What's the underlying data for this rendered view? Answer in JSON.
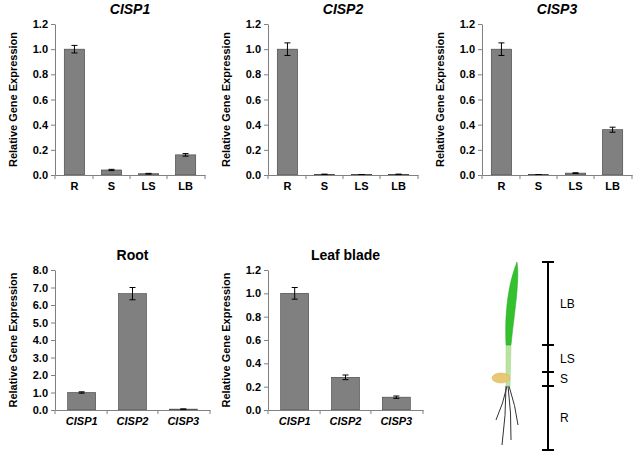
{
  "chart_data": [
    {
      "type": "bar",
      "title": "CISP1",
      "categories": [
        "R",
        "S",
        "LS",
        "LB"
      ],
      "values": [
        1.0,
        0.04,
        0.01,
        0.16
      ],
      "errors": [
        0.03,
        0.005,
        0.003,
        0.01
      ],
      "color": "#808080",
      "ylabel": "Relative Gene Expression",
      "ylim": [
        0,
        1.2
      ],
      "yticks": [
        {
          "value": 0,
          "label": "0.0"
        },
        {
          "value": 0.2,
          "label": "0.2"
        },
        {
          "value": 0.4,
          "label": "0.4"
        },
        {
          "value": 0.6,
          "label": "0.6"
        },
        {
          "value": 0.8,
          "label": "0.8"
        },
        {
          "value": 1.0,
          "label": "1.0"
        },
        {
          "value": 1.2,
          "label": "1.2"
        }
      ],
      "grid": false
    },
    {
      "type": "bar",
      "title": "CISP2",
      "categories": [
        "R",
        "S",
        "LS",
        "LB"
      ],
      "values": [
        1.0,
        0.005,
        0.003,
        0.005
      ],
      "errors": [
        0.05,
        0.002,
        0.001,
        0.002
      ],
      "color": "#808080",
      "ylabel": "Relative Gene Expression",
      "ylim": [
        0,
        1.2
      ],
      "yticks": [
        {
          "value": 0,
          "label": "0.0"
        },
        {
          "value": 0.2,
          "label": "0.2"
        },
        {
          "value": 0.4,
          "label": "0.4"
        },
        {
          "value": 0.6,
          "label": "0.6"
        },
        {
          "value": 0.8,
          "label": "0.8"
        },
        {
          "value": 1.0,
          "label": "1.0"
        },
        {
          "value": 1.2,
          "label": "1.2"
        }
      ],
      "grid": false
    },
    {
      "type": "bar",
      "title": "CISP3",
      "categories": [
        "R",
        "S",
        "LS",
        "LB"
      ],
      "values": [
        1.0,
        0.003,
        0.015,
        0.36
      ],
      "errors": [
        0.05,
        0.001,
        0.003,
        0.02
      ],
      "color": "#808080",
      "ylabel": "Relative Gene Expression",
      "ylim": [
        0,
        1.2
      ],
      "yticks": [
        {
          "value": 0,
          "label": "0.0"
        },
        {
          "value": 0.2,
          "label": "0.2"
        },
        {
          "value": 0.4,
          "label": "0.4"
        },
        {
          "value": 0.6,
          "label": "0.6"
        },
        {
          "value": 0.8,
          "label": "0.8"
        },
        {
          "value": 1.0,
          "label": "1.0"
        },
        {
          "value": 1.2,
          "label": "1.2"
        }
      ],
      "grid": false
    },
    {
      "type": "bar",
      "title": "Root",
      "categories": [
        "CISP1",
        "CISP2",
        "CISP3"
      ],
      "values": [
        1.0,
        6.65,
        0.05
      ],
      "errors": [
        0.04,
        0.35,
        0.01
      ],
      "color": "#808080",
      "ylabel": "Relative Gene Expression",
      "ylim": [
        0,
        8
      ],
      "yticks": [
        {
          "value": 0,
          "label": "0.0"
        },
        {
          "value": 1,
          "label": "1.0"
        },
        {
          "value": 2,
          "label": "2.0"
        },
        {
          "value": 3,
          "label": "3.0"
        },
        {
          "value": 4,
          "label": "4.0"
        },
        {
          "value": 5,
          "label": "5.0"
        },
        {
          "value": 6,
          "label": "6.0"
        },
        {
          "value": 7,
          "label": "7.0"
        },
        {
          "value": 8,
          "label": "8.0"
        }
      ],
      "grid": false
    },
    {
      "type": "bar",
      "title": "Leaf blade",
      "categories": [
        "CISP1",
        "CISP2",
        "CISP3"
      ],
      "values": [
        1.0,
        0.28,
        0.11
      ],
      "errors": [
        0.05,
        0.02,
        0.01
      ],
      "color": "#808080",
      "ylabel": "Relative Gene Expression",
      "ylim": [
        0,
        1.2
      ],
      "yticks": [
        {
          "value": 0,
          "label": "0.0"
        },
        {
          "value": 0.2,
          "label": "0.2"
        },
        {
          "value": 0.4,
          "label": "0.4"
        },
        {
          "value": 0.6,
          "label": "0.6"
        },
        {
          "value": 0.8,
          "label": "0.8"
        },
        {
          "value": 1.0,
          "label": "1.0"
        },
        {
          "value": 1.2,
          "label": "1.2"
        }
      ],
      "grid": false
    }
  ],
  "diagram": {
    "labels": [
      "LB",
      "LS",
      "S",
      "R"
    ]
  }
}
